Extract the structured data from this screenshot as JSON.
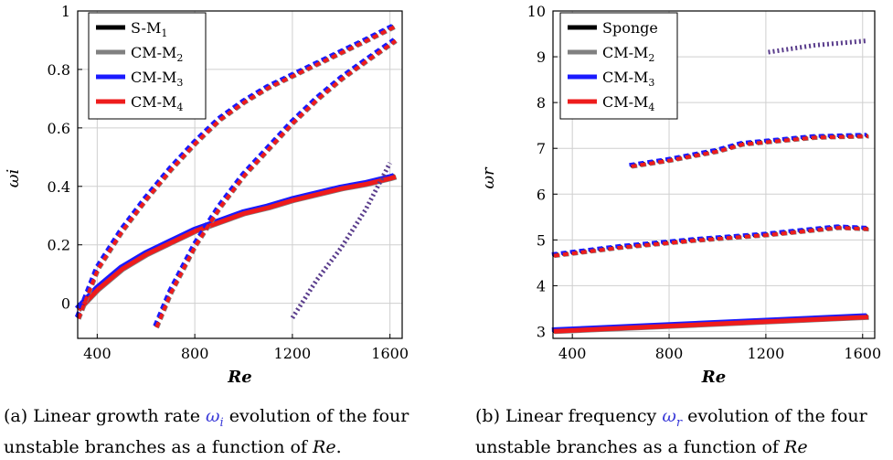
{
  "chart_data": [
    {
      "type": "line",
      "xlabel": "Re",
      "ylabel": "ω_i",
      "xlim": [
        320,
        1650
      ],
      "ylim": [
        -0.12,
        1.0
      ],
      "xticks": [
        "400",
        "800",
        "1200",
        "1600"
      ],
      "yticks": [
        "0",
        "0.2",
        "0.4",
        "0.6",
        "0.8",
        "1"
      ],
      "grid": true,
      "legend_position": "top-left",
      "legend": [
        "S-M1",
        "CM-M2",
        "CM-M3",
        "CM-M4"
      ],
      "colors": {
        "S-M1": "#000000",
        "CM-M2": "#808080",
        "CM-M3": "#1a1aff",
        "CM-M4": "#ee1c1c",
        "dotted_branch": "#5a3d8c"
      },
      "branches": [
        {
          "name": "branch-1-solid",
          "style": "solid",
          "x": [
            320,
            400,
            500,
            600,
            700,
            800,
            900,
            1000,
            1100,
            1200,
            1300,
            1400,
            1500,
            1600,
            1620
          ],
          "y": [
            -0.02,
            0.05,
            0.12,
            0.17,
            0.21,
            0.25,
            0.28,
            0.31,
            0.33,
            0.355,
            0.375,
            0.395,
            0.41,
            0.43,
            0.435
          ]
        },
        {
          "name": "branch-2-dashed",
          "style": "dashed",
          "x": [
            320,
            400,
            500,
            600,
            700,
            800,
            900,
            1000,
            1100,
            1200,
            1300,
            1400,
            1500,
            1620
          ],
          "y": [
            -0.05,
            0.12,
            0.25,
            0.36,
            0.46,
            0.55,
            0.63,
            0.69,
            0.74,
            0.78,
            0.82,
            0.86,
            0.9,
            0.95
          ]
        },
        {
          "name": "branch-3-dashed",
          "style": "dashed",
          "x": [
            640,
            700,
            800,
            900,
            1000,
            1100,
            1200,
            1300,
            1400,
            1500,
            1620
          ],
          "y": [
            -0.08,
            0.04,
            0.2,
            0.33,
            0.44,
            0.53,
            0.62,
            0.7,
            0.77,
            0.83,
            0.9
          ]
        },
        {
          "name": "branch-4-dotted",
          "style": "dotted",
          "x": [
            1200,
            1300,
            1400,
            1500,
            1600
          ],
          "y": [
            -0.05,
            0.08,
            0.19,
            0.32,
            0.48
          ]
        }
      ]
    },
    {
      "type": "line",
      "xlabel": "Re",
      "ylabel": "ω_r",
      "xlim": [
        320,
        1650
      ],
      "ylim": [
        2.85,
        10.0
      ],
      "xticks": [
        "400",
        "800",
        "1200",
        "1600"
      ],
      "yticks": [
        "3",
        "4",
        "5",
        "6",
        "7",
        "8",
        "9",
        "10"
      ],
      "grid": true,
      "legend_position": "top-left",
      "legend": [
        "Sponge",
        "CM-M2",
        "CM-M3",
        "CM-M4"
      ],
      "colors": {
        "Sponge": "#000000",
        "CM-M2": "#808080",
        "CM-M3": "#1a1aff",
        "CM-M4": "#ee1c1c",
        "dotted_branch": "#5a3d8c"
      },
      "branches": [
        {
          "name": "branch-1-solid",
          "style": "solid",
          "x": [
            320,
            1620
          ],
          "y": [
            3.02,
            3.33
          ]
        },
        {
          "name": "branch-2-dashed",
          "style": "dashed",
          "x": [
            320,
            600,
            900,
            1200,
            1500,
            1620
          ],
          "y": [
            4.67,
            4.85,
            5.0,
            5.12,
            5.28,
            5.25
          ]
        },
        {
          "name": "branch-3-dashed",
          "style": "dashed",
          "x": [
            640,
            800,
            1000,
            1100,
            1200,
            1400,
            1620
          ],
          "y": [
            6.62,
            6.75,
            6.95,
            7.1,
            7.15,
            7.25,
            7.28
          ]
        },
        {
          "name": "branch-4-dotted",
          "style": "dotted",
          "x": [
            1210,
            1400,
            1620
          ],
          "y": [
            9.1,
            9.25,
            9.35
          ]
        }
      ]
    }
  ],
  "captions": {
    "a": {
      "pre": "(a) Linear growth rate ",
      "sym": "ω",
      "sub": "i",
      "mid": " evolution of the four unstable branches as a function of ",
      "var": "Re",
      "post": "."
    },
    "b": {
      "pre": "(b) Linear frequency ",
      "sym": "ω",
      "sub": "r",
      "mid": " evolution of the four unstable branches as a function of ",
      "var": "Re",
      "post": ""
    }
  }
}
